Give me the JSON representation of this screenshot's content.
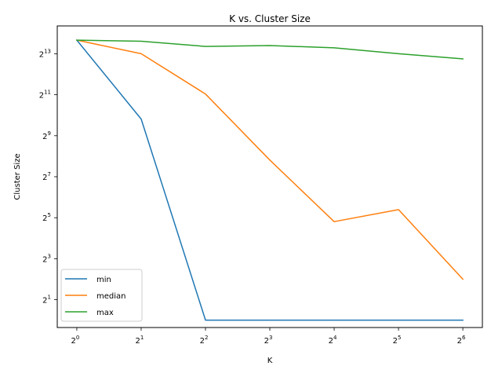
{
  "chart_data": {
    "type": "line",
    "title": "K vs. Cluster Size",
    "xlabel": "K",
    "ylabel": "Cluster Size",
    "x_scale": "log2",
    "y_scale": "log2",
    "x": [
      1,
      2,
      4,
      8,
      16,
      32,
      64
    ],
    "x_ticks": [
      {
        "value": 1,
        "base": "2",
        "exp": "0"
      },
      {
        "value": 2,
        "base": "2",
        "exp": "1"
      },
      {
        "value": 4,
        "base": "2",
        "exp": "2"
      },
      {
        "value": 8,
        "base": "2",
        "exp": "3"
      },
      {
        "value": 16,
        "base": "2",
        "exp": "4"
      },
      {
        "value": 32,
        "base": "2",
        "exp": "5"
      },
      {
        "value": 64,
        "base": "2",
        "exp": "6"
      }
    ],
    "y_ticks": [
      {
        "value": 2,
        "base": "2",
        "exp": "1"
      },
      {
        "value": 8,
        "base": "2",
        "exp": "3"
      },
      {
        "value": 32,
        "base": "2",
        "exp": "5"
      },
      {
        "value": 128,
        "base": "2",
        "exp": "7"
      },
      {
        "value": 512,
        "base": "2",
        "exp": "9"
      },
      {
        "value": 2048,
        "base": "2",
        "exp": "11"
      },
      {
        "value": 8192,
        "base": "2",
        "exp": "13"
      }
    ],
    "ylim": [
      0.78,
      21000
    ],
    "xlim": [
      0.81,
      79
    ],
    "series": [
      {
        "name": "min",
        "color": "#1f77b4",
        "values": [
          13000,
          900,
          1,
          1,
          1,
          1,
          1
        ]
      },
      {
        "name": "median",
        "color": "#ff7f0e",
        "values": [
          13000,
          8200,
          2100,
          225,
          28,
          42,
          4
        ]
      },
      {
        "name": "max",
        "color": "#2ca02c",
        "values": [
          13000,
          12500,
          10500,
          10800,
          10000,
          8200,
          6900
        ]
      }
    ],
    "legend_position": "lower-left",
    "grid": false
  }
}
